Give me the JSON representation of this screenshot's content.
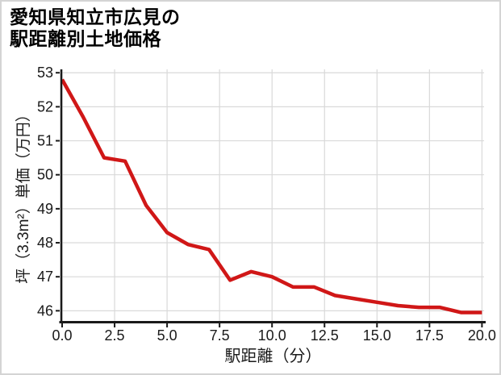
{
  "title": {
    "line1": "愛知県知立市広見の",
    "line2": "駅距離別土地価格"
  },
  "chart_data": {
    "type": "line",
    "title": "愛知県知立市広見の駅距離別土地価格",
    "xlabel": "駅距離（分）",
    "ylabel": "坪（3.3m²）単価（万円）",
    "x": [
      0,
      1,
      2,
      3,
      4,
      5,
      6,
      7,
      8,
      9,
      10,
      11,
      12,
      13,
      14,
      15,
      16,
      17,
      18,
      19,
      20
    ],
    "series": [
      {
        "name": "坪単価",
        "values": [
          52.8,
          51.7,
          50.5,
          50.4,
          49.1,
          48.3,
          47.95,
          47.8,
          46.9,
          47.15,
          47.0,
          46.7,
          46.7,
          46.45,
          46.35,
          46.25,
          46.15,
          46.1,
          46.1,
          45.95,
          45.95
        ]
      }
    ],
    "xticks": [
      0,
      2.5,
      5,
      7.5,
      10,
      12.5,
      15,
      17.5,
      20
    ],
    "xtick_labels": [
      "0.0",
      "2.5",
      "5.0",
      "7.5",
      "10.0",
      "12.5",
      "15.0",
      "17.5",
      "20.0"
    ],
    "yticks": [
      46,
      47,
      48,
      49,
      50,
      51,
      52,
      53
    ],
    "ytick_labels": [
      "46",
      "47",
      "48",
      "49",
      "50",
      "51",
      "52",
      "53"
    ],
    "xlim": [
      0,
      20.1
    ],
    "ylim": [
      45.7,
      53.1
    ],
    "grid": true,
    "legend": "none",
    "colors": {
      "line": "#d01717",
      "grid": "#d9d9d9",
      "axis": "#1a1a1a",
      "text": "#1a1a1a",
      "background": "#ffffff",
      "frame_border": "#d4d4d4"
    }
  }
}
